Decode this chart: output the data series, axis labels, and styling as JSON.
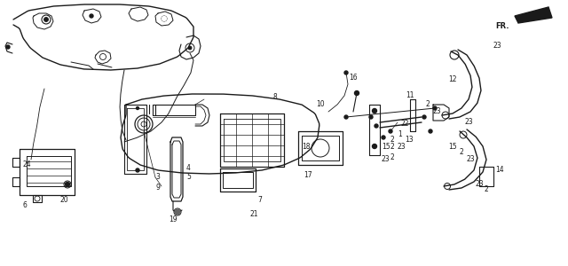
{
  "bg_color": "#ffffff",
  "line_color": "#1a1a1a",
  "gray_color": "#888888",
  "light_gray": "#cccccc",
  "figsize": [
    6.4,
    3.0
  ],
  "dpi": 100
}
